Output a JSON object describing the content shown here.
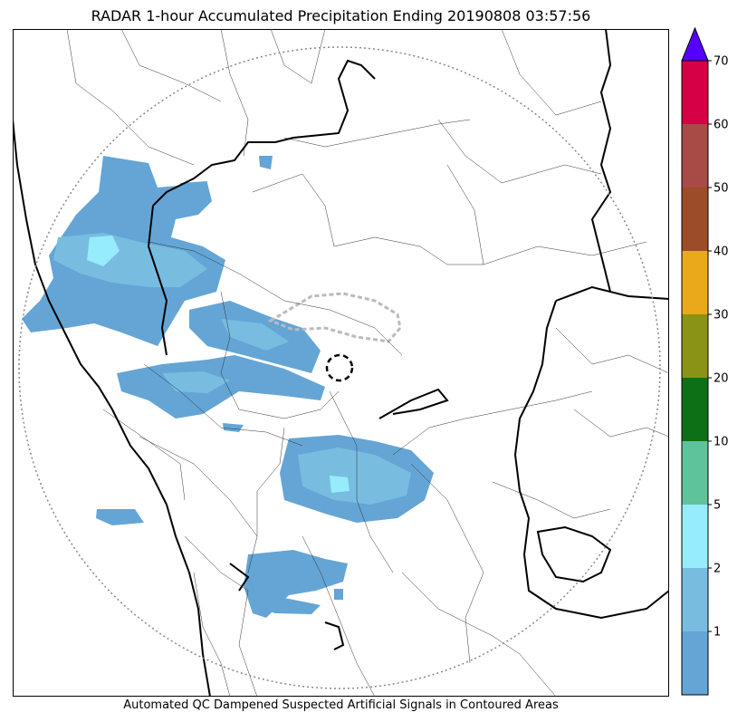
{
  "title": "RADAR 1-hour Accumulated Precipitation Ending 20190808 03:57:56",
  "footer_note": "Automated QC Dampened Suspected Artificial Signals in Contoured Areas",
  "colorbar": {
    "ticks": [
      "1",
      "2",
      "5",
      "10",
      "20",
      "30",
      "40",
      "50",
      "60",
      "70"
    ],
    "colors": [
      "#64a5d6",
      "#78bde0",
      "#96ecfa",
      "#5ec39b",
      "#0e7016",
      "#8a9316",
      "#e9a91a",
      "#9c4d27",
      "#a84a45",
      "#d60046"
    ],
    "overflow_color": "#5500ff"
  },
  "map": {
    "border_color": "#000000",
    "range_ring_color": "#888888",
    "precip_legend": {
      "light": "#64a5d6",
      "medium": "#78bde0",
      "heavy": "#96ecfa"
    }
  }
}
